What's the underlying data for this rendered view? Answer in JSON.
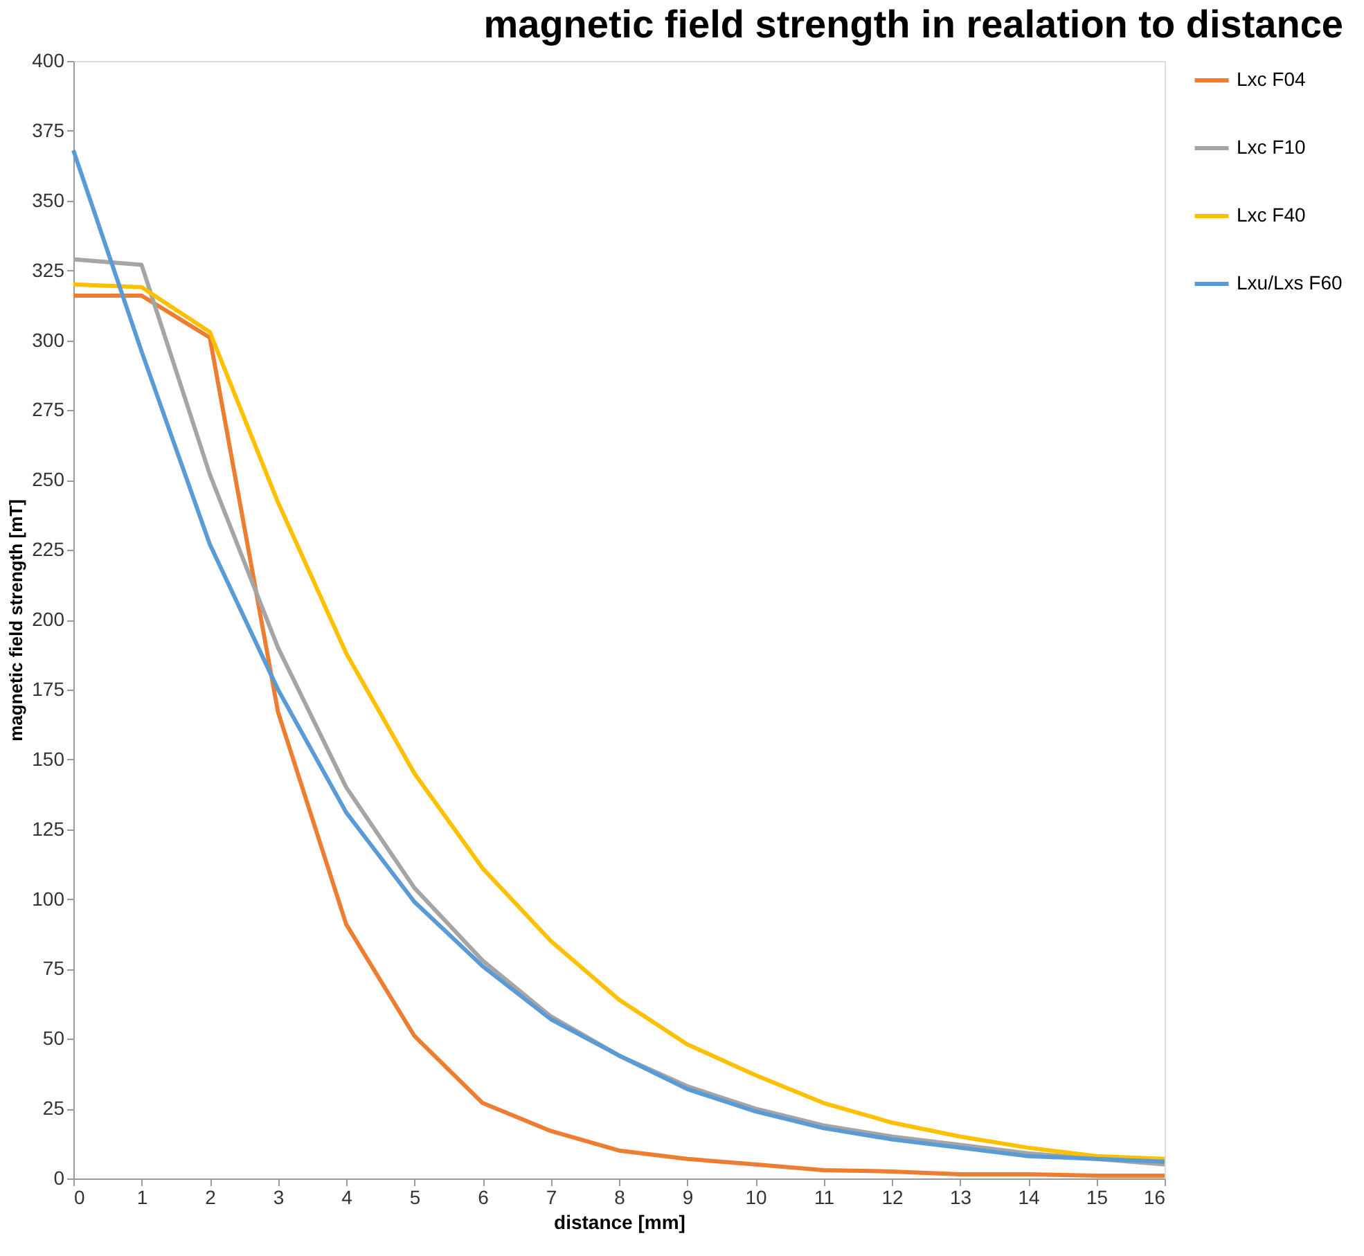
{
  "chart_data": {
    "type": "line",
    "title": "magnetic field strength in realation to distance",
    "xlabel": "distance [mm]",
    "ylabel": "magnetic field strength [mT]",
    "x": [
      0,
      1,
      2,
      3,
      4,
      5,
      6,
      7,
      8,
      9,
      10,
      11,
      12,
      13,
      14,
      15,
      16
    ],
    "xlim": [
      0,
      16
    ],
    "xticks": [
      0,
      1,
      2,
      3,
      4,
      5,
      6,
      7,
      8,
      9,
      10,
      11,
      12,
      13,
      14,
      15,
      16
    ],
    "ylim": [
      0,
      400
    ],
    "yticks": [
      0,
      25,
      50,
      75,
      100,
      125,
      150,
      175,
      200,
      225,
      250,
      275,
      300,
      325,
      350,
      375,
      400
    ],
    "grid": false,
    "legend": "right",
    "marker": "none",
    "line_style": "solid",
    "series": [
      {
        "name": "Lxc F04",
        "color": "#ed7d31",
        "values": [
          316,
          316,
          301,
          167,
          91,
          51,
          27,
          17,
          10,
          7,
          5,
          3,
          2.5,
          1.5,
          1.5,
          1,
          1
        ]
      },
      {
        "name": "Lxc F10",
        "color": "#a5a5a5",
        "values": [
          329,
          327,
          252,
          190,
          140,
          104,
          78,
          58,
          44,
          33,
          25,
          19,
          15,
          12,
          9,
          7,
          5
        ]
      },
      {
        "name": "Lxc F40",
        "color": "#ffc000",
        "values": [
          320,
          319,
          303,
          242,
          188,
          145,
          111,
          85,
          64,
          48,
          37,
          27,
          20,
          15,
          11,
          8,
          7
        ]
      },
      {
        "name": "Lxu/Lxs F60",
        "color": "#5b9bd5",
        "values": [
          368,
          296,
          227,
          175,
          131,
          99,
          76,
          57,
          44,
          32,
          24,
          18,
          14,
          11,
          8,
          7,
          6
        ]
      }
    ]
  }
}
